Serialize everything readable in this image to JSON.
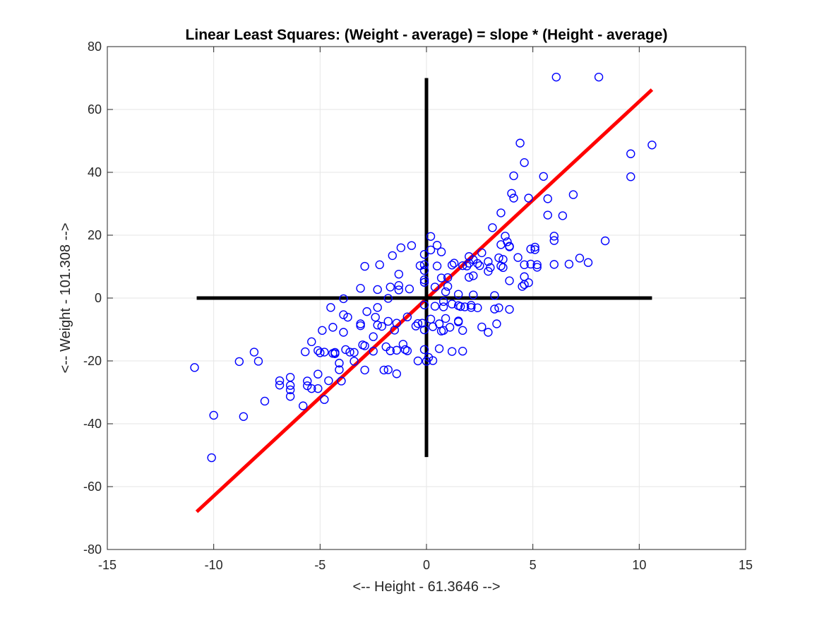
{
  "chart_data": {
    "type": "scatter",
    "title": "Linear Least Squares: (Weight - average) = slope * (Height - average)",
    "xlabel": "<-- Height - 61.3646 -->",
    "ylabel": "<-- Weight - 101.308 -->",
    "xlim": [
      -15,
      15
    ],
    "ylim": [
      -80,
      80
    ],
    "xticks": [
      -15,
      -10,
      -5,
      0,
      5,
      10,
      15
    ],
    "yticks": [
      -80,
      -60,
      -40,
      -20,
      0,
      20,
      40,
      60,
      80
    ],
    "grid": true,
    "colors": {
      "points": "#0000ff",
      "fit_line": "#ff0000",
      "crosshair": "#000000",
      "grid": "#e6e6e6",
      "axis": "#262626"
    },
    "series": [
      {
        "marker": "circle-open",
        "points": [
          [
            -10.9,
            -22.1
          ],
          [
            -10.0,
            -37.3
          ],
          [
            -10.1,
            -50.8
          ],
          [
            -8.8,
            -20.2
          ],
          [
            -8.6,
            -37.7
          ],
          [
            -8.1,
            -17.2
          ],
          [
            -7.9,
            -20.1
          ],
          [
            -7.6,
            -32.8
          ],
          [
            -6.9,
            -26.3
          ],
          [
            -6.9,
            -27.7
          ],
          [
            -6.4,
            -25.2
          ],
          [
            -6.4,
            -29.2
          ],
          [
            -6.4,
            -31.3
          ],
          [
            -6.4,
            -27.8
          ],
          [
            -5.8,
            -34.3
          ],
          [
            -5.7,
            -17.1
          ],
          [
            -5.6,
            -26.4
          ],
          [
            -5.6,
            -27.9
          ],
          [
            -5.4,
            -28.8
          ],
          [
            -5.4,
            -13.9
          ],
          [
            -5.1,
            -16.7
          ],
          [
            -5.1,
            -24.2
          ],
          [
            -5.1,
            -28.8
          ],
          [
            -5.0,
            -17.4
          ],
          [
            -4.9,
            -10.3
          ],
          [
            -4.8,
            -32.3
          ],
          [
            -4.8,
            -17.2
          ],
          [
            -4.6,
            -26.3
          ],
          [
            -4.5,
            -3.0
          ],
          [
            -4.4,
            -9.3
          ],
          [
            -4.4,
            -17.6
          ],
          [
            -4.3,
            -17.3
          ],
          [
            -4.3,
            -17.7
          ],
          [
            -4.1,
            -20.7
          ],
          [
            -4.1,
            -22.8
          ],
          [
            -4.0,
            -26.4
          ],
          [
            -3.9,
            -10.9
          ],
          [
            -3.9,
            -5.3
          ],
          [
            -3.9,
            -0.2
          ],
          [
            -3.8,
            -16.4
          ],
          [
            -3.7,
            -6.1
          ],
          [
            -3.6,
            -17.2
          ],
          [
            -3.4,
            -17.3
          ],
          [
            -3.4,
            -20.1
          ],
          [
            -3.1,
            -8.2
          ],
          [
            -3.1,
            -8.8
          ],
          [
            -3.1,
            3.1
          ],
          [
            -3.0,
            -14.9
          ],
          [
            -2.9,
            -22.9
          ],
          [
            -2.9,
            -15.2
          ],
          [
            -2.9,
            10.1
          ],
          [
            -2.8,
            -4.3
          ],
          [
            -2.5,
            -12.3
          ],
          [
            -2.5,
            -16.9
          ],
          [
            -2.4,
            -6.1
          ],
          [
            -2.3,
            -8.6
          ],
          [
            -2.3,
            2.7
          ],
          [
            -2.3,
            -3.0
          ],
          [
            -2.2,
            10.6
          ],
          [
            -2.1,
            -9.0
          ],
          [
            -2.0,
            -22.9
          ],
          [
            -1.9,
            -15.5
          ],
          [
            -1.8,
            -22.8
          ],
          [
            -1.8,
            -7.4
          ],
          [
            -1.8,
            -0.1
          ],
          [
            -1.7,
            -16.8
          ],
          [
            -1.7,
            3.5
          ],
          [
            -1.6,
            13.5
          ],
          [
            -1.5,
            -10.2
          ],
          [
            -1.4,
            -16.6
          ],
          [
            -1.4,
            -24.1
          ],
          [
            -1.4,
            -8.0
          ],
          [
            -1.3,
            2.6
          ],
          [
            -1.3,
            4.0
          ],
          [
            -1.3,
            7.6
          ],
          [
            -1.2,
            16.0
          ],
          [
            -1.1,
            -14.7
          ],
          [
            -1.0,
            -16.4
          ],
          [
            -0.9,
            -16.8
          ],
          [
            -0.9,
            -6.0
          ],
          [
            -0.8,
            2.9
          ],
          [
            -0.7,
            16.7
          ],
          [
            -0.5,
            -8.9
          ],
          [
            -0.4,
            -20.0
          ],
          [
            -0.4,
            -8.1
          ],
          [
            -0.3,
            10.3
          ],
          [
            -0.2,
            -8.0
          ],
          [
            -0.1,
            -10.1
          ],
          [
            -0.1,
            -16.4
          ],
          [
            -0.1,
            -2.2
          ],
          [
            -0.1,
            5.0
          ],
          [
            -0.1,
            5.8
          ],
          [
            -0.1,
            8.8
          ],
          [
            -0.1,
            10.6
          ],
          [
            -0.1,
            13.9
          ],
          [
            0.0,
            -20.1
          ],
          [
            0.1,
            -18.9
          ],
          [
            0.2,
            -6.7
          ],
          [
            0.2,
            15.3
          ],
          [
            0.2,
            19.6
          ],
          [
            0.3,
            -19.9
          ],
          [
            0.3,
            -9.1
          ],
          [
            0.4,
            -2.6
          ],
          [
            0.4,
            3.5
          ],
          [
            0.5,
            16.8
          ],
          [
            0.5,
            10.2
          ],
          [
            0.6,
            -16.1
          ],
          [
            0.6,
            -8.2
          ],
          [
            0.7,
            -10.5
          ],
          [
            0.7,
            6.4
          ],
          [
            0.7,
            14.7
          ],
          [
            0.8,
            -2.8
          ],
          [
            0.8,
            -1.1
          ],
          [
            0.8,
            -10.3
          ],
          [
            0.9,
            2.0
          ],
          [
            0.9,
            -6.5
          ],
          [
            1.0,
            3.7
          ],
          [
            1.0,
            6.5
          ],
          [
            1.1,
            -9.3
          ],
          [
            1.2,
            -17.0
          ],
          [
            1.2,
            -1.9
          ],
          [
            1.2,
            10.5
          ],
          [
            1.3,
            11.1
          ],
          [
            1.5,
            -7.3
          ],
          [
            1.5,
            -7.6
          ],
          [
            1.5,
            1.2
          ],
          [
            1.5,
            -2.4
          ],
          [
            1.6,
            -2.7
          ],
          [
            1.7,
            -10.3
          ],
          [
            1.7,
            -16.9
          ],
          [
            1.7,
            10.3
          ],
          [
            1.8,
            -2.8
          ],
          [
            1.9,
            10.2
          ],
          [
            2.0,
            6.6
          ],
          [
            2.0,
            11.1
          ],
          [
            2.0,
            13.2
          ],
          [
            2.1,
            -3.0
          ],
          [
            2.1,
            -2.3
          ],
          [
            2.2,
            1.0
          ],
          [
            2.2,
            7.1
          ],
          [
            2.2,
            12.2
          ],
          [
            2.4,
            -3.1
          ],
          [
            2.4,
            11.0
          ],
          [
            2.5,
            10.3
          ],
          [
            2.6,
            -9.2
          ],
          [
            2.6,
            14.4
          ],
          [
            2.9,
            -10.9
          ],
          [
            2.9,
            8.5
          ],
          [
            2.9,
            11.6
          ],
          [
            3.0,
            9.7
          ],
          [
            3.1,
            22.4
          ],
          [
            3.2,
            0.8
          ],
          [
            3.2,
            -3.5
          ],
          [
            3.3,
            -8.2
          ],
          [
            3.4,
            12.8
          ],
          [
            3.4,
            -3.1
          ],
          [
            3.5,
            10.2
          ],
          [
            3.5,
            17.0
          ],
          [
            3.5,
            27.1
          ],
          [
            3.6,
            9.7
          ],
          [
            3.6,
            12.3
          ],
          [
            3.7,
            19.7
          ],
          [
            3.8,
            17.9
          ],
          [
            3.9,
            -3.6
          ],
          [
            3.9,
            5.5
          ],
          [
            3.9,
            16.3
          ],
          [
            3.9,
            16.5
          ],
          [
            4.0,
            33.3
          ],
          [
            4.1,
            38.9
          ],
          [
            4.1,
            31.8
          ],
          [
            4.3,
            12.9
          ],
          [
            4.4,
            49.3
          ],
          [
            4.5,
            3.7
          ],
          [
            4.6,
            4.3
          ],
          [
            4.6,
            6.8
          ],
          [
            4.6,
            10.6
          ],
          [
            4.6,
            43.1
          ],
          [
            4.8,
            4.9
          ],
          [
            4.8,
            31.8
          ],
          [
            4.9,
            10.8
          ],
          [
            4.9,
            15.6
          ],
          [
            5.1,
            15.4
          ],
          [
            5.1,
            16.2
          ],
          [
            5.2,
            9.8
          ],
          [
            5.2,
            10.6
          ],
          [
            5.5,
            38.7
          ],
          [
            5.7,
            26.4
          ],
          [
            5.7,
            31.6
          ],
          [
            6.0,
            18.3
          ],
          [
            6.0,
            19.7
          ],
          [
            6.0,
            10.7
          ],
          [
            6.1,
            70.3
          ],
          [
            6.4,
            26.2
          ],
          [
            6.7,
            10.8
          ],
          [
            6.9,
            32.9
          ],
          [
            7.2,
            12.7
          ],
          [
            7.6,
            11.3
          ],
          [
            8.1,
            70.3
          ],
          [
            8.4,
            18.2
          ],
          [
            9.6,
            38.6
          ],
          [
            9.6,
            45.9
          ],
          [
            10.6,
            48.7
          ]
        ]
      }
    ],
    "fit_line": {
      "x": [
        -10.8,
        10.6
      ],
      "y": [
        -68.0,
        66.3
      ]
    },
    "crosshair": {
      "horizontal": {
        "x": [
          -10.8,
          10.6
        ],
        "y": [
          0,
          0
        ]
      },
      "vertical": {
        "x": [
          0,
          0
        ],
        "y": [
          -50.6,
          70.0
        ]
      }
    }
  }
}
